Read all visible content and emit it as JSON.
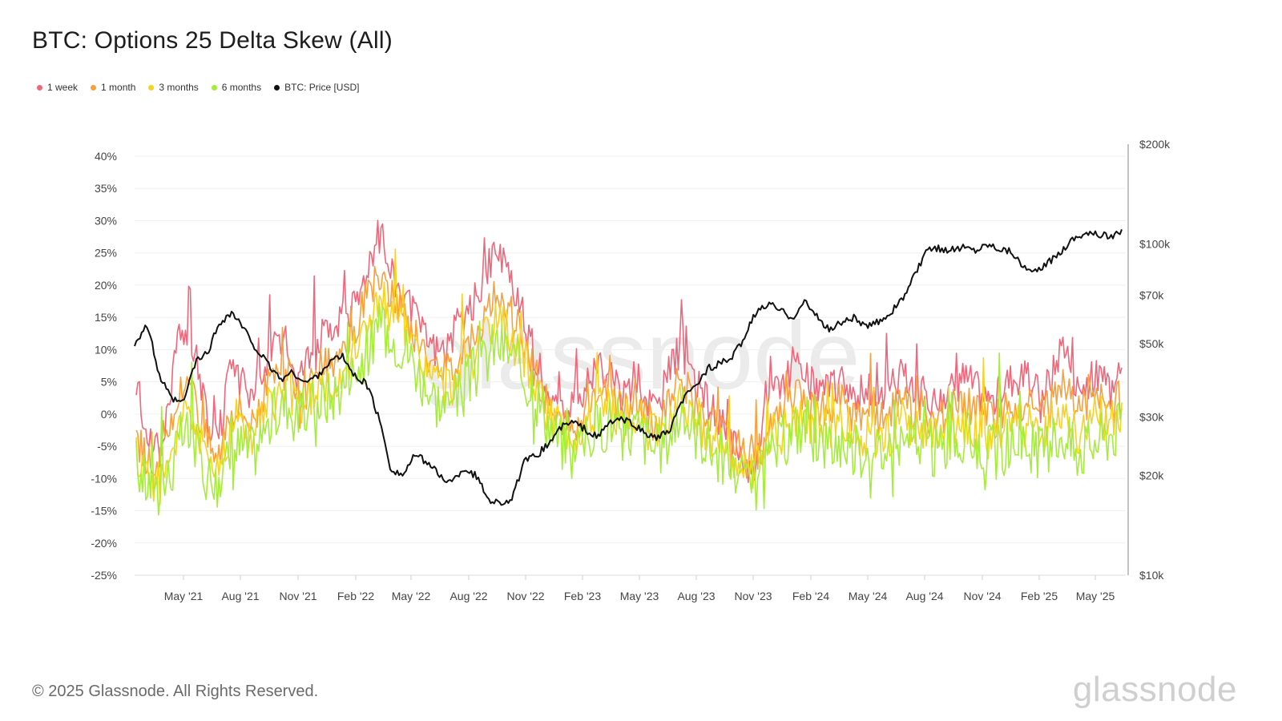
{
  "title": "BTC: Options 25 Delta Skew (All)",
  "footer": "© 2025 Glassnode. All Rights Reserved.",
  "brand": "glassnode",
  "watermark": "glassnode",
  "legend": [
    {
      "label": "1 week",
      "color": "#f0667a"
    },
    {
      "label": "1 month",
      "color": "#f7a03c"
    },
    {
      "label": "3 months",
      "color": "#f7d21e"
    },
    {
      "label": "6 months",
      "color": "#a6ec3a"
    },
    {
      "label": "BTC: Price [USD]",
      "color": "#111111"
    }
  ],
  "chart_data": {
    "type": "line",
    "x_ticks": [
      "May '21",
      "Aug '21",
      "Nov '21",
      "Feb '22",
      "May '22",
      "Aug '22",
      "Nov '22",
      "Feb '23",
      "May '23",
      "Aug '23",
      "Nov '23",
      "Feb '24",
      "May '24",
      "Aug '24",
      "Nov '24",
      "Feb '25",
      "May '25"
    ],
    "y_left": {
      "ticks": [
        "40%",
        "35%",
        "30%",
        "25%",
        "20%",
        "15%",
        "10%",
        "5%",
        "0%",
        "-5%",
        "-10%",
        "-15%",
        "-20%",
        "-25%"
      ],
      "range": [
        -25,
        40
      ],
      "unit": "%"
    },
    "y_right": {
      "ticks": [
        "$200k",
        "$100k",
        "$70k",
        "$50k",
        "$30k",
        "$20k",
        "$10k"
      ],
      "values": [
        200000,
        100000,
        70000,
        50000,
        30000,
        20000,
        10000
      ],
      "scale": "log",
      "range": [
        10000,
        200000
      ]
    },
    "grid": true,
    "skew_series": [
      {
        "name": "6 months",
        "color": "#a6ec3a",
        "values": [
          -8,
          -11,
          -12,
          -9,
          -3,
          -4,
          -9,
          -11,
          -7,
          -5,
          -6,
          -3,
          0,
          2,
          -1,
          1,
          2,
          3,
          5,
          7,
          10,
          13,
          12,
          11,
          8,
          4,
          2,
          1,
          3,
          6,
          8,
          11,
          10,
          7,
          4,
          1,
          -3,
          -5,
          -7,
          -3,
          -2,
          -1,
          -4,
          -2,
          -4,
          -6,
          -3,
          0,
          -2,
          -4,
          -6,
          -8,
          -10,
          -12,
          -9,
          -6,
          -4,
          -2,
          -3,
          -4,
          -5,
          -4,
          -6,
          -5,
          -6,
          -5,
          -4,
          -5,
          -5,
          -6,
          -5,
          -4,
          -4,
          -5,
          -6,
          -5,
          -4,
          -5,
          -6,
          -4,
          -3,
          -6,
          -5,
          -4,
          -3,
          -2
        ]
      },
      {
        "name": "3 months",
        "color": "#f7d21e",
        "values": [
          -6,
          -9,
          -11,
          -6,
          0,
          -1,
          -6,
          -9,
          -3,
          -2,
          -3,
          0,
          2,
          4,
          1,
          3,
          5,
          5,
          8,
          10,
          15,
          17,
          15,
          13,
          10,
          7,
          5,
          4,
          7,
          9,
          11,
          14,
          13,
          10,
          6,
          2,
          -1,
          -3,
          -4,
          0,
          1,
          1,
          -2,
          0,
          -2,
          -4,
          0,
          3,
          0,
          -2,
          -4,
          -6,
          -8,
          -10,
          -7,
          -4,
          -2,
          0,
          -1,
          -2,
          -2,
          -1,
          -4,
          -3,
          -4,
          -3,
          -1,
          -3,
          -3,
          -4,
          -3,
          -2,
          -2,
          -3,
          -4,
          -2,
          -1,
          -2,
          -3,
          -1,
          1,
          -3,
          -2,
          0,
          -1,
          1
        ]
      },
      {
        "name": "1 month",
        "color": "#f7a03c",
        "values": [
          -4,
          -7,
          -8,
          -2,
          5,
          3,
          -3,
          -7,
          1,
          1,
          -1,
          3,
          5,
          7,
          3,
          6,
          8,
          7,
          11,
          13,
          20,
          21,
          18,
          16,
          12,
          9,
          7,
          7,
          10,
          12,
          15,
          18,
          17,
          13,
          8,
          4,
          0,
          -2,
          -2,
          3,
          4,
          3,
          0,
          3,
          0,
          -2,
          3,
          6,
          2,
          0,
          -2,
          -4,
          -6,
          -8,
          -5,
          -1,
          1,
          3,
          2,
          1,
          1,
          2,
          -1,
          0,
          -1,
          1,
          2,
          0,
          0,
          -1,
          0,
          2,
          1,
          0,
          -1,
          1,
          2,
          1,
          0,
          2,
          5,
          1,
          2,
          3,
          1,
          3
        ]
      },
      {
        "name": "1 week",
        "color": "#f0667a",
        "values": [
          2,
          -4,
          -6,
          5,
          14,
          10,
          0,
          -5,
          6,
          5,
          3,
          8,
          10,
          11,
          6,
          10,
          13,
          11,
          16,
          17,
          24,
          28,
          22,
          19,
          15,
          12,
          10,
          11,
          15,
          17,
          21,
          25,
          22,
          17,
          11,
          6,
          2,
          0,
          1,
          6,
          7,
          6,
          2,
          6,
          3,
          1,
          7,
          10,
          5,
          3,
          0,
          -3,
          -5,
          -10,
          -2,
          3,
          5,
          7,
          5,
          4,
          4,
          6,
          3,
          4,
          2,
          5,
          6,
          3,
          3,
          2,
          3,
          6,
          5,
          3,
          2,
          5,
          6,
          5,
          3,
          6,
          12,
          4,
          5,
          6,
          3,
          10
        ]
      }
    ],
    "price_series": {
      "name": "BTC: Price [USD]",
      "color": "#111111",
      "values": [
        50000,
        57000,
        40000,
        34000,
        33000,
        44000,
        47000,
        58000,
        62000,
        55000,
        48000,
        43000,
        39000,
        41000,
        38000,
        40000,
        44000,
        46000,
        40000,
        38000,
        30000,
        21000,
        20000,
        23000,
        22000,
        20000,
        19000,
        21000,
        20000,
        17000,
        16500,
        17000,
        22000,
        23000,
        25000,
        28000,
        29000,
        27500,
        26000,
        29000,
        29500,
        28500,
        26500,
        26000,
        27500,
        34000,
        37000,
        42000,
        43500,
        45000,
        52000,
        62000,
        66000,
        63000,
        60000,
        67000,
        60000,
        55000,
        58000,
        60000,
        56000,
        58000,
        62000,
        68000,
        80000,
        95000,
        97000,
        96000,
        98000,
        96000,
        100000,
        97000,
        95000,
        84000,
        82000,
        88000,
        95000,
        104000,
        108000,
        107000,
        105000,
        109000
      ]
    }
  }
}
